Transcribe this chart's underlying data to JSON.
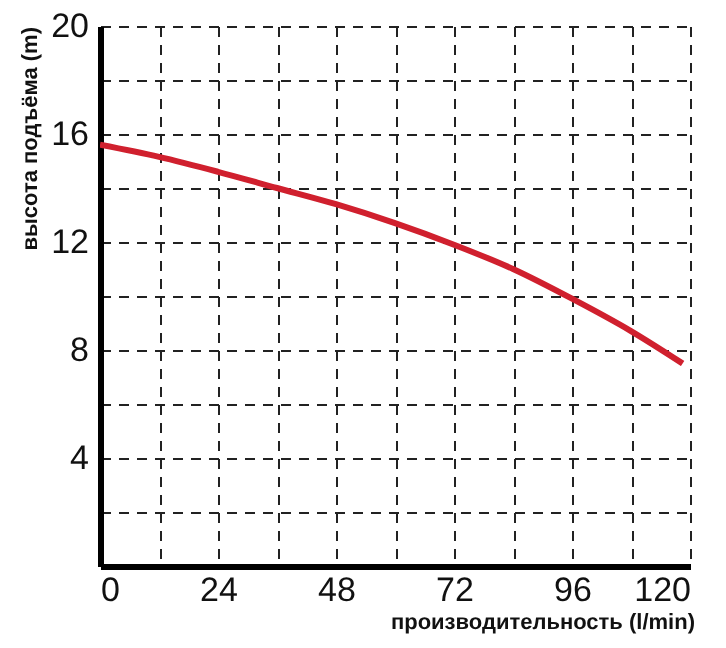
{
  "chart_data": {
    "type": "line",
    "xlabel": "производительность (l/min)",
    "ylabel": "высота подъёма (m)",
    "x": [
      0,
      12,
      24,
      36,
      48,
      60,
      72,
      84,
      96,
      108,
      118.5
    ],
    "series": [
      {
        "color": "#d0202e",
        "values": [
          15.6,
          15.15,
          14.6,
          14.0,
          13.4,
          12.7,
          11.9,
          11.0,
          9.9,
          8.7,
          7.5
        ]
      }
    ],
    "xlim": [
      0,
      120
    ],
    "ylim": [
      0,
      20
    ],
    "xticks": [
      0,
      {
        "value": 12,
        "label": null
      },
      24,
      {
        "value": 36,
        "label": null
      },
      48,
      {
        "value": 60,
        "label": null
      },
      72,
      {
        "value": 84,
        "label": null
      },
      96,
      {
        "value": 108,
        "label": null
      },
      120
    ],
    "yticks": [
      {
        "value": 0,
        "label": null
      },
      {
        "value": 2,
        "label": null
      },
      4,
      {
        "value": 6,
        "label": null
      },
      8,
      {
        "value": 10,
        "label": null
      },
      12,
      {
        "value": 14,
        "label": null
      },
      16,
      {
        "value": 18,
        "label": null
      },
      20
    ],
    "grid": true,
    "line_style": "solid",
    "marker": "none"
  }
}
